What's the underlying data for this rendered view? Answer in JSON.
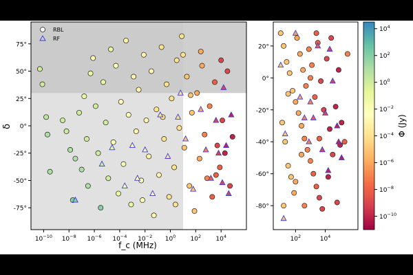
{
  "chart_data": [
    {
      "type": "scatter",
      "title": "",
      "xlabel": "f_c (MHz)",
      "ylabel": "δ",
      "xscale": "log",
      "xlim_log10": [
        -11,
        6
      ],
      "ylim": [
        -95,
        95
      ],
      "xtick_log10": [
        -10,
        -8,
        -6,
        -4,
        -2,
        0,
        2,
        4
      ],
      "ytick_labels": [
        "75°",
        "50°",
        "25°",
        "0°",
        "-25°",
        "-50°",
        "-75°"
      ],
      "ytick_values": [
        75,
        50,
        25,
        0,
        -25,
        -50,
        -75
      ],
      "shaded_regions": [
        {
          "label": "",
          "x_log10": [
            -11,
            6
          ],
          "y": [
            30,
            95
          ],
          "color": "#a8a8a8"
        },
        {
          "label": "",
          "x_log10": [
            -11,
            1
          ],
          "y": [
            -95,
            95
          ],
          "color": "#c8c8c8"
        }
      ],
      "legend": {
        "placement": "top-left",
        "entries": [
          {
            "label": "RBL",
            "marker": "circle"
          },
          {
            "label": "RF",
            "marker": "triangle"
          }
        ]
      },
      "series": [
        {
          "name": "RBL",
          "marker": "circle",
          "points": [
            [
              -10.3,
              52,
              0
            ],
            [
              -10.1,
              38,
              0
            ],
            [
              -9.8,
              8,
              0.5
            ],
            [
              -9.7,
              -8,
              1
            ],
            [
              -9.5,
              -42,
              1
            ],
            [
              -8.5,
              5,
              0
            ],
            [
              -8.2,
              -5,
              0
            ],
            [
              -7.9,
              -22,
              1
            ],
            [
              -7.7,
              -68,
              2
            ],
            [
              -7.5,
              -30,
              1
            ],
            [
              -7.2,
              12,
              0
            ],
            [
              -7.0,
              -40,
              1
            ],
            [
              -6.8,
              27,
              -1
            ],
            [
              -6.6,
              -12,
              0
            ],
            [
              -6.5,
              -55,
              1
            ],
            [
              -6.3,
              48,
              -1
            ],
            [
              -6.1,
              62,
              -2
            ],
            [
              -5.9,
              18,
              0
            ],
            [
              -5.7,
              -25,
              0
            ],
            [
              -5.5,
              -75,
              2
            ],
            [
              -5.3,
              40,
              -1
            ],
            [
              -5.1,
              3,
              0
            ],
            [
              -4.9,
              -48,
              0
            ],
            [
              -4.7,
              70,
              -1
            ],
            [
              -4.5,
              -15,
              -2
            ],
            [
              -4.3,
              55,
              -2
            ],
            [
              -4.1,
              -62,
              -1
            ],
            [
              -3.9,
              22,
              -2
            ],
            [
              -3.7,
              -35,
              -2
            ],
            [
              -3.5,
              78,
              -3
            ],
            [
              -3.3,
              10,
              -2
            ],
            [
              -3.1,
              -72,
              -1
            ],
            [
              -2.9,
              45,
              -3
            ],
            [
              -2.7,
              -5,
              -3
            ],
            [
              -2.5,
              33,
              -3
            ],
            [
              -2.3,
              -50,
              -2
            ],
            [
              -2.1,
              65,
              -3
            ],
            [
              -1.9,
              5,
              -3
            ],
            [
              -1.7,
              -28,
              -3
            ],
            [
              -1.5,
              50,
              -3
            ],
            [
              -1.3,
              -82,
              -3
            ],
            [
              -1.1,
              15,
              -4
            ],
            [
              -0.9,
              -45,
              -3
            ],
            [
              -0.7,
              72,
              -4
            ],
            [
              -0.5,
              -12,
              -4
            ],
            [
              -0.3,
              38,
              -4
            ],
            [
              -0.1,
              -65,
              -4
            ],
            [
              0.1,
              25,
              -4
            ],
            [
              0.3,
              -38,
              -4
            ],
            [
              0.5,
              60,
              -4
            ],
            [
              0.7,
              -2,
              -4
            ],
            [
              0.9,
              82,
              -4
            ],
            [
              1.1,
              -20,
              -5
            ],
            [
              1.3,
              45,
              -5
            ],
            [
              1.5,
              -55,
              -5
            ],
            [
              1.7,
              12,
              -5
            ],
            [
              1.9,
              -78,
              -5
            ],
            [
              2.1,
              30,
              -6
            ],
            [
              2.3,
              -30,
              -6
            ],
            [
              2.5,
              55,
              -6
            ],
            [
              2.7,
              -8,
              -7
            ],
            [
              2.9,
              -48,
              -7
            ],
            [
              3.1,
              18,
              -7
            ],
            [
              3.3,
              -65,
              -8
            ],
            [
              3.5,
              40,
              -8
            ],
            [
              3.7,
              -18,
              -9
            ],
            [
              3.9,
              -38,
              -8
            ],
            [
              4.1,
              5,
              -9
            ],
            [
              4.3,
              -25,
              -10
            ],
            [
              4.5,
              50,
              -9
            ],
            [
              4.7,
              -55,
              -9
            ],
            [
              4.9,
              -10,
              -10
            ],
            [
              1.0,
              65,
              -4
            ],
            [
              0.4,
              -72,
              -4
            ],
            [
              1.6,
              28,
              -5
            ],
            [
              -2.2,
              -68,
              -2
            ],
            [
              -0.6,
              8,
              -4
            ],
            [
              2.4,
              68,
              -6
            ],
            [
              3.6,
              -45,
              -8
            ],
            [
              4.0,
              60,
              -9
            ]
          ]
        },
        {
          "name": "RF",
          "marker": "triangle",
          "points": [
            [
              -7.5,
              -68,
              2
            ],
            [
              -5.4,
              -35,
              0
            ],
            [
              -4.6,
              -20,
              -1
            ],
            [
              -3.6,
              -55,
              -2
            ],
            [
              -3.0,
              -18,
              -2
            ],
            [
              -2.6,
              -48,
              -2
            ],
            [
              -2.0,
              -22,
              -3
            ],
            [
              -1.4,
              -62,
              -3
            ],
            [
              -0.8,
              10,
              -4
            ],
            [
              -0.2,
              -28,
              -4
            ],
            [
              0.6,
              8,
              -4
            ],
            [
              0.8,
              30,
              -4
            ],
            [
              1.2,
              -12,
              -5
            ],
            [
              1.8,
              -58,
              -5
            ],
            [
              2.4,
              15,
              -6
            ],
            [
              2.8,
              -22,
              -7
            ],
            [
              3.2,
              -48,
              -8
            ],
            [
              3.6,
              5,
              -9
            ],
            [
              3.8,
              -25,
              -9
            ],
            [
              4.1,
              -52,
              -9
            ],
            [
              4.4,
              -18,
              -10
            ],
            [
              4.6,
              -62,
              -9
            ],
            [
              4.8,
              10,
              -10
            ],
            [
              4.2,
              35,
              -9
            ]
          ]
        }
      ]
    },
    {
      "type": "scatter",
      "title": "",
      "xlabel": "",
      "ylabel": "",
      "xscale": "log",
      "xlim_log10": [
        0.5,
        6.2
      ],
      "ylim": [
        -95,
        35
      ],
      "xtick_log10": [
        2,
        4
      ],
      "ytick_labels": [
        "20°",
        "0°",
        "-20°",
        "-40°",
        "-60°",
        "-80°"
      ],
      "ytick_values": [
        20,
        0,
        -20,
        -40,
        -60,
        -80
      ],
      "series": [
        {
          "name": "RBL",
          "marker": "circle",
          "points": [
            [
              1.0,
              28,
              -5
            ],
            [
              1.2,
              20,
              -5
            ],
            [
              1.4,
              10,
              -5
            ],
            [
              1.6,
              3,
              -5
            ],
            [
              1.8,
              -8,
              -5
            ],
            [
              2.0,
              -15,
              -6
            ],
            [
              2.2,
              -22,
              -6
            ],
            [
              2.4,
              -30,
              -6
            ],
            [
              2.6,
              -38,
              -7
            ],
            [
              2.8,
              -45,
              -7
            ],
            [
              3.0,
              -52,
              -7
            ],
            [
              3.2,
              -60,
              -8
            ],
            [
              3.4,
              -68,
              -8
            ],
            [
              3.6,
              -75,
              -9
            ],
            [
              3.8,
              -82,
              -9
            ],
            [
              1.1,
              -28,
              -5
            ],
            [
              1.3,
              -40,
              -5
            ],
            [
              1.5,
              -55,
              -5
            ],
            [
              1.7,
              -62,
              -5
            ],
            [
              1.9,
              -72,
              -6
            ],
            [
              2.1,
              25,
              -6
            ],
            [
              2.3,
              15,
              -6
            ],
            [
              2.5,
              5,
              -6
            ],
            [
              2.7,
              -5,
              -7
            ],
            [
              2.9,
              18,
              -7
            ],
            [
              3.1,
              8,
              -7
            ],
            [
              3.3,
              -12,
              -8
            ],
            [
              3.5,
              22,
              -8
            ],
            [
              3.7,
              -2,
              -9
            ],
            [
              3.9,
              -20,
              -9
            ],
            [
              4.1,
              12,
              -9
            ],
            [
              4.3,
              -32,
              -10
            ],
            [
              4.5,
              -48,
              -9
            ],
            [
              4.7,
              -18,
              -10
            ],
            [
              4.9,
              5,
              -10
            ],
            [
              5.1,
              -28,
              -10
            ],
            [
              5.3,
              -40,
              -8
            ],
            [
              5.5,
              15,
              -7
            ],
            [
              1.2,
              -80,
              -5
            ],
            [
              2.0,
              -65,
              -6
            ],
            [
              2.6,
              -80,
              -7
            ],
            [
              3.0,
              0,
              -7
            ],
            [
              3.6,
              -38,
              -8
            ],
            [
              4.2,
              -62,
              -10
            ],
            [
              4.8,
              -78,
              -9
            ],
            [
              5.0,
              -42,
              -10
            ],
            [
              1.5,
              -10,
              -5
            ],
            [
              2.4,
              -48,
              -6
            ],
            [
              3.4,
              28,
              -8
            ],
            [
              4.4,
              25,
              -9
            ]
          ]
        },
        {
          "name": "RF",
          "marker": "triangle",
          "points": [
            [
              1.0,
              8,
              -5
            ],
            [
              1.3,
              -35,
              -5
            ],
            [
              2.0,
              28,
              -6
            ],
            [
              2.3,
              -12,
              -6
            ],
            [
              2.6,
              -25,
              -7
            ],
            [
              2.9,
              -40,
              -7
            ],
            [
              3.2,
              -25,
              -8
            ],
            [
              3.5,
              20,
              -8
            ],
            [
              3.8,
              -45,
              -9
            ],
            [
              4.0,
              -22,
              -9
            ],
            [
              4.2,
              -58,
              -10
            ],
            [
              4.5,
              -2,
              -9
            ],
            [
              4.8,
              -30,
              -10
            ],
            [
              5.1,
              -50,
              -10
            ],
            [
              1.2,
              -88,
              -5
            ],
            [
              3.0,
              -15,
              -7
            ],
            [
              4.3,
              18,
              -9
            ],
            [
              4.9,
              -40,
              -10
            ]
          ]
        }
      ]
    }
  ],
  "colorbar": {
    "label": "Φ (Jy)",
    "tick_log10": [
      4,
      2,
      0,
      -2,
      -4,
      -6,
      -8,
      -10
    ],
    "range_log10": [
      -11,
      4.5
    ],
    "stops": [
      "#3288bd",
      "#66c2a5",
      "#abdda4",
      "#e6f598",
      "#ffffbf",
      "#fee08b",
      "#fdae61",
      "#f46d43",
      "#d53e4f",
      "#9e0142"
    ]
  },
  "colors": {
    "rf_marker_edge": "#3b3bd6",
    "marker_edge": "#222222",
    "figure_band": "#000000"
  }
}
